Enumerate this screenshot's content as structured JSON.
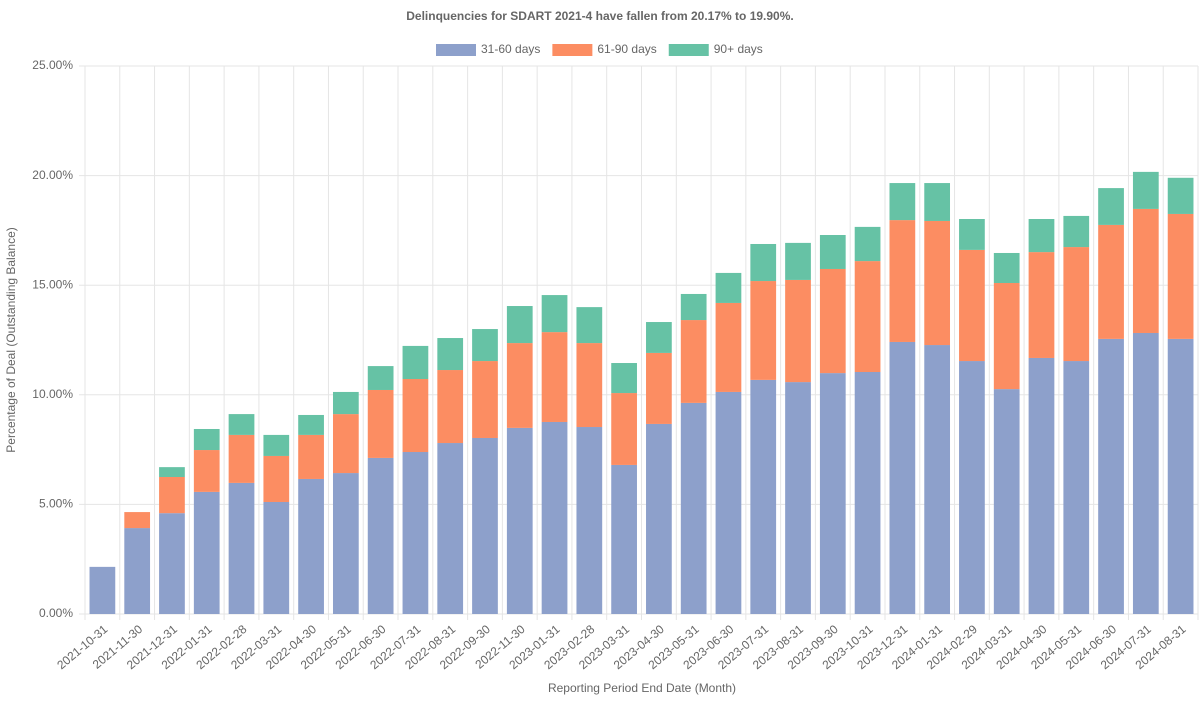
{
  "chart_data": {
    "type": "stacked-bar",
    "title": "Delinquencies for SDART 2021-4 have fallen from 20.17% to 19.90%.",
    "x_label": "Reporting Period End Date (Month)",
    "y_label": "Percentage of Deal (Outstanding Balance)",
    "categories": [
      "2021-10-31",
      "2021-11-30",
      "2021-12-31",
      "2022-01-31",
      "2022-02-28",
      "2022-03-31",
      "2022-04-30",
      "2022-05-31",
      "2022-06-30",
      "2022-07-31",
      "2022-08-31",
      "2022-09-30",
      "2022-11-30",
      "2023-01-31",
      "2023-02-28",
      "2023-03-31",
      "2023-04-30",
      "2023-05-31",
      "2023-06-30",
      "2023-07-31",
      "2023-08-31",
      "2023-09-30",
      "2023-10-31",
      "2023-12-31",
      "2024-01-31",
      "2024-02-29",
      "2024-03-31",
      "2024-04-30",
      "2024-05-31",
      "2024-06-30",
      "2024-07-31",
      "2024-08-31"
    ],
    "series": [
      {
        "name": "31-60 days",
        "color": "#8da0cb",
        "values": [
          2.15,
          3.92,
          4.6,
          5.57,
          5.98,
          5.11,
          6.16,
          6.43,
          7.12,
          7.39,
          7.8,
          8.03,
          8.49,
          8.76,
          8.53,
          6.8,
          8.67,
          9.63,
          10.13,
          10.68,
          10.58,
          10.99,
          11.04,
          12.41,
          12.27,
          11.54,
          10.26,
          11.68,
          11.54,
          12.55,
          12.82,
          12.55
        ]
      },
      {
        "name": "61-90 days",
        "color": "#fc8d62",
        "values": [
          0,
          0.73,
          1.65,
          1.91,
          2.19,
          2.1,
          2.01,
          2.69,
          3.1,
          3.33,
          3.33,
          3.51,
          3.87,
          4.1,
          3.83,
          3.28,
          3.24,
          3.78,
          4.06,
          4.51,
          4.66,
          4.75,
          5.06,
          5.56,
          5.66,
          5.07,
          4.84,
          4.83,
          5.2,
          5.2,
          5.66,
          5.7
        ]
      },
      {
        "name": "90+ days",
        "color": "#66c2a5",
        "values": [
          0,
          0,
          0.45,
          0.96,
          0.95,
          0.96,
          0.91,
          1.01,
          1.09,
          1.51,
          1.46,
          1.46,
          1.69,
          1.69,
          1.64,
          1.37,
          1.41,
          1.19,
          1.37,
          1.69,
          1.69,
          1.55,
          1.56,
          1.69,
          1.73,
          1.41,
          1.37,
          1.51,
          1.42,
          1.68,
          1.69,
          1.65
        ]
      }
    ],
    "ylim": [
      0,
      25
    ],
    "yticks": [
      {
        "value": 0,
        "label": "0.00%"
      },
      {
        "value": 5,
        "label": "5.00%"
      },
      {
        "value": 10,
        "label": "10.00%"
      },
      {
        "value": 15,
        "label": "15.00%"
      },
      {
        "value": 20,
        "label": "20.00%"
      },
      {
        "value": 25,
        "label": "25.00%"
      }
    ],
    "grid": true
  }
}
